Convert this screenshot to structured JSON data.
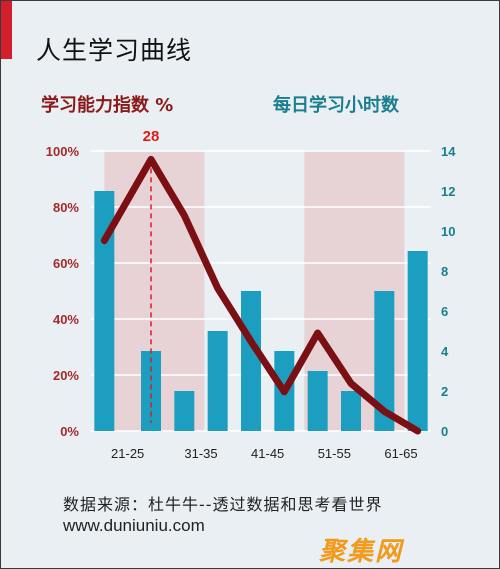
{
  "title": "人生学习曲线",
  "source": "数据来源：杜牛牛--透过数据和思考看世界",
  "url": "www.duniuniu.com",
  "watermark": "聚集网",
  "colors": {
    "line": "#7a1013",
    "bar": "#1b9ec0",
    "band": "#e7d3d6",
    "left_title": "#8a1a1a",
    "right_title": "#1b7e8f",
    "left_ticks": "#a52a2a",
    "right_ticks": "#1b7e8f",
    "marker": "#e01b1b",
    "accent": "#d21f2b",
    "watermark": "#f29a1a"
  },
  "chart_data": {
    "type": "bar",
    "left_axis_title": "学习能力指数 %",
    "right_axis_title": "每日学习小时数",
    "left_ylim": [
      0,
      100
    ],
    "left_ticks": [
      "0%",
      "20%",
      "40%",
      "60%",
      "80%",
      "100%"
    ],
    "right_ylim": [
      0,
      14
    ],
    "right_ticks": [
      "0",
      "2",
      "4",
      "6",
      "8",
      "10",
      "12",
      "14"
    ],
    "x_tick_labels": [
      "21-25",
      "31-35",
      "41-45",
      "51-55",
      "61-65"
    ],
    "grid": true,
    "bars": {
      "axis": "right",
      "values": [
        12,
        4,
        2,
        5,
        7,
        4,
        3,
        2,
        7,
        9
      ]
    },
    "line": {
      "axis": "left",
      "x": [
        21,
        28,
        33,
        38,
        43,
        48,
        53,
        58,
        63,
        68
      ],
      "values": [
        68,
        97,
        77,
        51,
        32,
        14,
        35,
        17,
        7,
        0
      ]
    },
    "shaded_bands": [
      [
        21,
        36
      ],
      [
        51,
        66
      ]
    ],
    "marker": {
      "x": 28,
      "label": "28"
    }
  }
}
